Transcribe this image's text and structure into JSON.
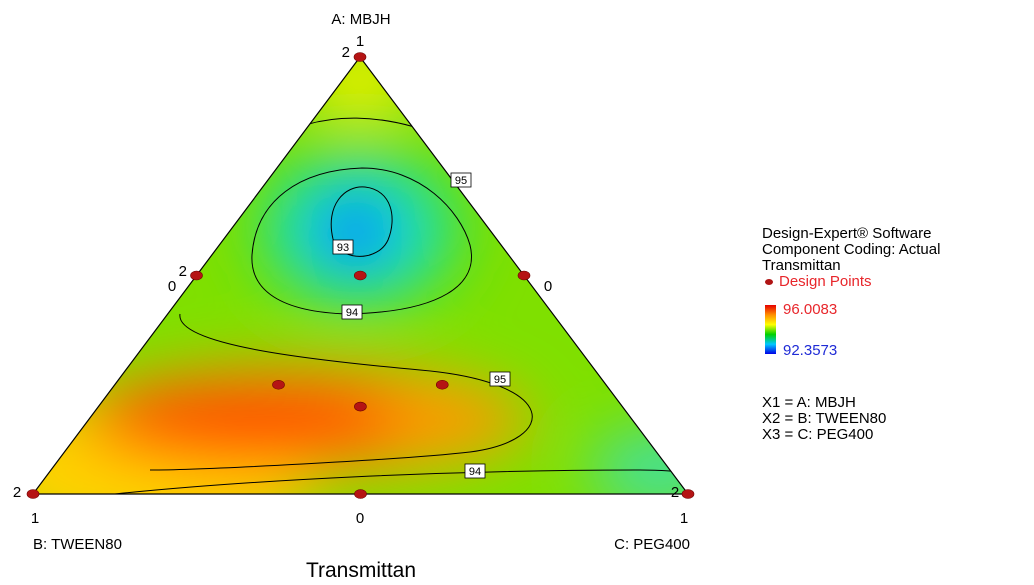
{
  "chart_data": {
    "type": "ternary-contour",
    "title": "Transmittan",
    "axes": {
      "A": {
        "label": "A: MBJH",
        "tick_max": "1",
        "tick_min": "0"
      },
      "B": {
        "label": "B: TWEEN80",
        "tick_max": "1",
        "tick_min": "0"
      },
      "C": {
        "label": "C: PEG400",
        "tick_max": "1",
        "tick_min": "0"
      }
    },
    "contour_labels": [
      "95",
      "93",
      "94",
      "95",
      "94"
    ],
    "design_points": [
      {
        "A": 1,
        "B": 0,
        "C": 0,
        "replicates": "2"
      },
      {
        "A": 0,
        "B": 1,
        "C": 0,
        "replicates": "2"
      },
      {
        "A": 0,
        "B": 0,
        "C": 1,
        "replicates": "2"
      },
      {
        "A": 0.5,
        "B": 0.5,
        "C": 0,
        "replicates": "2"
      },
      {
        "A": 0.5,
        "B": 0,
        "C": 0.5
      },
      {
        "A": 0,
        "B": 0.5,
        "C": 0.5
      },
      {
        "A": 0.5,
        "B": 0.25,
        "C": 0.25
      },
      {
        "A": 0.25,
        "B": 0.5,
        "C": 0.25
      },
      {
        "A": 0.25,
        "B": 0.25,
        "C": 0.5
      },
      {
        "A": 0.2,
        "B": 0.4,
        "C": 0.4
      }
    ],
    "range": {
      "high": 96.0083,
      "low": 92.3573
    },
    "colorscale": [
      "#e60000",
      "#ff9000",
      "#ffff00",
      "#00d000",
      "#00c8ff",
      "#0000e6"
    ]
  },
  "legend": {
    "software": "Design-Expert® Software",
    "coding": "Component Coding: Actual",
    "response": "Transmittan",
    "design_points_label": "Design Points",
    "high_value": "96.0083",
    "low_value": "92.3573",
    "x1": "X1 = A: MBJH",
    "x2": "X2 = B: TWEEN80",
    "x3": "X3 = C: PEG400"
  }
}
